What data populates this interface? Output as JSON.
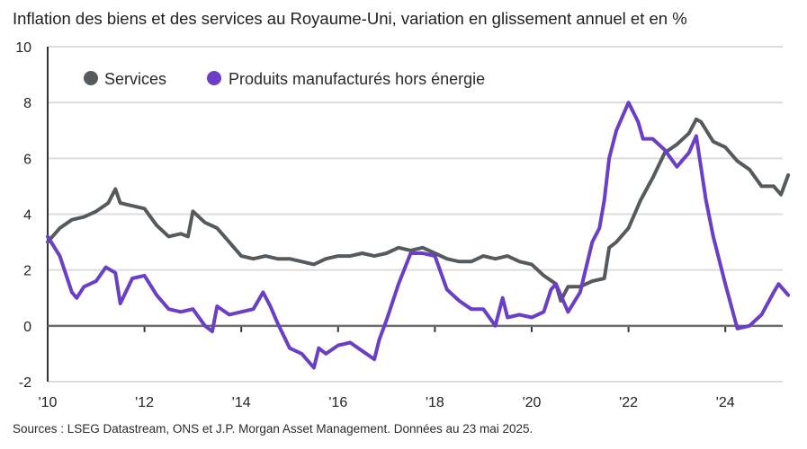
{
  "title": "Inflation des biens et des services au Royaume-Uni, variation en glissement annuel et en %",
  "source": "Sources : LSEG Datastream, ONS et J.P. Morgan Asset Management. Données au 23 mai 2025.",
  "colors": {
    "services": "#555a5e",
    "goods": "#6a3fc8",
    "grid": "#dcdcdc",
    "axis": "#555555"
  },
  "chart_data": {
    "type": "line",
    "title": "Inflation des biens et des services au Royaume-Uni, variation en glissement annuel et en %",
    "xlabel": "",
    "ylabel": "",
    "xlim": [
      2010,
      2025.6
    ],
    "ylim": [
      -2,
      10
    ],
    "yticks": [
      -2,
      0,
      2,
      4,
      6,
      8,
      10
    ],
    "ytick_labels": [
      "-2",
      "0",
      "2",
      "4",
      "6",
      "8",
      "10"
    ],
    "xticks": [
      2010,
      2012,
      2014,
      2016,
      2018,
      2020,
      2022,
      2024
    ],
    "xtick_labels": [
      "'10",
      "'12",
      "'14",
      "'16",
      "'18",
      "'20",
      "'22",
      "'24"
    ],
    "grid": true,
    "legend": {
      "placement": "top-left",
      "entries": [
        "Services",
        "Produits manufacturés hors énergie"
      ]
    },
    "series": [
      {
        "name": "Services",
        "x": [
          2010.0,
          2010.25,
          2010.5,
          2010.75,
          2011.0,
          2011.25,
          2011.4,
          2011.5,
          2011.75,
          2012.0,
          2012.25,
          2012.5,
          2012.75,
          2012.9,
          2013.0,
          2013.25,
          2013.5,
          2013.75,
          2014.0,
          2014.25,
          2014.5,
          2014.75,
          2015.0,
          2015.25,
          2015.5,
          2015.75,
          2016.0,
          2016.25,
          2016.5,
          2016.75,
          2017.0,
          2017.25,
          2017.5,
          2017.75,
          2018.0,
          2018.25,
          2018.5,
          2018.75,
          2019.0,
          2019.25,
          2019.5,
          2019.75,
          2020.0,
          2020.25,
          2020.5,
          2020.6,
          2020.75,
          2021.0,
          2021.25,
          2021.5,
          2021.6,
          2021.75,
          2022.0,
          2022.25,
          2022.5,
          2022.75,
          2023.0,
          2023.25,
          2023.4,
          2023.5,
          2023.75,
          2024.0,
          2024.25,
          2024.5,
          2024.75,
          2025.0,
          2025.15,
          2025.3
        ],
        "values": [
          3.0,
          3.5,
          3.8,
          3.9,
          4.1,
          4.4,
          4.9,
          4.4,
          4.3,
          4.2,
          3.6,
          3.2,
          3.3,
          3.2,
          4.1,
          3.7,
          3.5,
          3.0,
          2.5,
          2.4,
          2.5,
          2.4,
          2.4,
          2.3,
          2.2,
          2.4,
          2.5,
          2.5,
          2.6,
          2.5,
          2.6,
          2.8,
          2.7,
          2.8,
          2.6,
          2.4,
          2.3,
          2.3,
          2.5,
          2.4,
          2.5,
          2.3,
          2.2,
          1.8,
          1.5,
          0.9,
          1.4,
          1.4,
          1.6,
          1.7,
          2.8,
          3.0,
          3.5,
          4.5,
          5.3,
          6.2,
          6.5,
          6.9,
          7.4,
          7.3,
          6.6,
          6.4,
          5.9,
          5.6,
          5.0,
          5.0,
          4.7,
          5.4
        ]
      },
      {
        "name": "Produits manufacturés hors énergie",
        "x": [
          2010.0,
          2010.25,
          2010.5,
          2010.6,
          2010.75,
          2011.0,
          2011.2,
          2011.4,
          2011.5,
          2011.75,
          2012.0,
          2012.25,
          2012.5,
          2012.75,
          2013.0,
          2013.25,
          2013.4,
          2013.5,
          2013.75,
          2014.0,
          2014.25,
          2014.45,
          2014.6,
          2014.75,
          2015.0,
          2015.25,
          2015.5,
          2015.6,
          2015.75,
          2016.0,
          2016.25,
          2016.5,
          2016.75,
          2016.85,
          2017.0,
          2017.25,
          2017.5,
          2017.75,
          2018.0,
          2018.25,
          2018.5,
          2018.75,
          2019.0,
          2019.25,
          2019.4,
          2019.5,
          2019.75,
          2020.0,
          2020.25,
          2020.4,
          2020.5,
          2020.75,
          2021.0,
          2021.25,
          2021.4,
          2021.5,
          2021.6,
          2021.75,
          2022.0,
          2022.2,
          2022.3,
          2022.5,
          2022.75,
          2023.0,
          2023.25,
          2023.4,
          2023.6,
          2023.75,
          2024.0,
          2024.25,
          2024.5,
          2024.75,
          2025.0,
          2025.1,
          2025.3
        ],
        "values": [
          3.2,
          2.5,
          1.2,
          1.0,
          1.4,
          1.6,
          2.1,
          1.9,
          0.8,
          1.7,
          1.8,
          1.1,
          0.6,
          0.5,
          0.6,
          0.0,
          -0.2,
          0.7,
          0.4,
          0.5,
          0.6,
          1.2,
          0.7,
          0.1,
          -0.8,
          -1.0,
          -1.5,
          -0.8,
          -1.0,
          -0.7,
          -0.6,
          -0.9,
          -1.2,
          -0.5,
          0.2,
          1.5,
          2.6,
          2.6,
          2.5,
          1.3,
          0.9,
          0.6,
          0.6,
          0.0,
          1.0,
          0.3,
          0.4,
          0.3,
          0.5,
          1.3,
          1.5,
          0.5,
          1.2,
          3.0,
          3.5,
          4.5,
          6.0,
          7.0,
          8.0,
          7.3,
          6.7,
          6.7,
          6.3,
          5.7,
          6.2,
          6.8,
          4.5,
          3.2,
          1.5,
          -0.1,
          0.0,
          0.4,
          1.2,
          1.5,
          1.1
        ]
      }
    ]
  }
}
